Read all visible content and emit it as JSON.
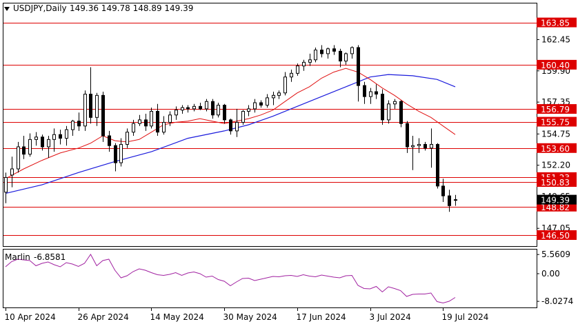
{
  "header": {
    "symbol": "USDJPY,Daily",
    "ohlc": "149.36 149.78 148.89 149.39"
  },
  "chart_data": [
    {
      "type": "candlestick",
      "y_ticks": [
        "162.45",
        "159.90",
        "157.35",
        "154.75",
        "152.20",
        "149.65",
        "147.05"
      ],
      "x_ticks": [
        "10 Apr 2024",
        "26 Apr 2024",
        "14 May 2024",
        "30 May 2024",
        "17 Jun 2024",
        "3 Jul 2024",
        "19 Jul 2024"
      ],
      "ylim": [
        145.6,
        165.4
      ],
      "levels": [
        "163.85",
        "160.40",
        "156.79",
        "155.75",
        "153.60",
        "151.23",
        "150.83",
        "148.82",
        "146.50"
      ],
      "current_price": "149.39",
      "colors": {
        "level_line": "#dd0000",
        "level_label_bg": "#dd0000",
        "current_price_bg": "#000000",
        "ma_fast": "#e01010",
        "ma_slow": "#1a1adc",
        "bull_body": "#ffffff",
        "bear_body": "#000000"
      },
      "candles": [
        [
          150.0,
          151.6,
          149.1,
          151.2
        ],
        [
          151.4,
          152.9,
          150.4,
          151.9
        ],
        [
          151.9,
          154.1,
          151.6,
          153.7
        ],
        [
          153.7,
          154.6,
          152.7,
          153.1
        ],
        [
          153.1,
          154.8,
          152.9,
          154.3
        ],
        [
          154.3,
          154.9,
          153.8,
          154.5
        ],
        [
          154.5,
          154.7,
          153.4,
          153.7
        ],
        [
          153.7,
          154.6,
          152.8,
          154.3
        ],
        [
          154.3,
          155.2,
          153.3,
          154.7
        ],
        [
          154.7,
          155.1,
          153.9,
          154.4
        ],
        [
          154.4,
          155.4,
          153.8,
          155.1
        ],
        [
          155.1,
          155.9,
          154.6,
          155.8
        ],
        [
          155.8,
          156.5,
          155.0,
          155.4
        ],
        [
          155.4,
          158.3,
          155.0,
          158.0
        ],
        [
          158.0,
          160.2,
          155.6,
          156.1
        ],
        [
          156.1,
          158.1,
          155.4,
          157.9
        ],
        [
          157.9,
          158.2,
          154.1,
          154.6
        ],
        [
          154.6,
          155.0,
          153.3,
          153.8
        ],
        [
          153.8,
          154.0,
          151.7,
          152.4
        ],
        [
          152.4,
          154.4,
          152.1,
          153.9
        ],
        [
          153.9,
          155.2,
          153.6,
          154.9
        ],
        [
          154.9,
          155.9,
          154.6,
          155.6
        ],
        [
          155.6,
          156.3,
          155.4,
          155.9
        ],
        [
          155.9,
          156.4,
          155.0,
          155.4
        ],
        [
          155.4,
          156.9,
          155.2,
          156.6
        ],
        [
          156.6,
          157.2,
          154.6,
          154.9
        ],
        [
          154.9,
          156.2,
          154.7,
          155.7
        ],
        [
          155.7,
          156.6,
          155.4,
          156.3
        ],
        [
          156.3,
          157.0,
          155.9,
          156.7
        ],
        [
          156.7,
          157.1,
          156.4,
          156.9
        ],
        [
          156.9,
          157.1,
          156.5,
          156.8
        ],
        [
          156.8,
          157.2,
          156.6,
          157.0
        ],
        [
          157.0,
          157.3,
          156.7,
          156.8
        ],
        [
          156.8,
          157.6,
          156.6,
          157.4
        ],
        [
          157.4,
          157.6,
          156.0,
          156.3
        ],
        [
          156.3,
          157.3,
          156.1,
          157.1
        ],
        [
          157.1,
          157.2,
          155.6,
          155.9
        ],
        [
          155.9,
          156.0,
          154.7,
          155.0
        ],
        [
          155.0,
          156.8,
          154.5,
          155.7
        ],
        [
          155.7,
          156.7,
          155.5,
          156.6
        ],
        [
          156.6,
          157.1,
          156.2,
          156.8
        ],
        [
          156.8,
          157.6,
          156.5,
          157.3
        ],
        [
          157.3,
          157.5,
          156.9,
          157.1
        ],
        [
          157.1,
          158.0,
          156.9,
          157.7
        ],
        [
          157.7,
          158.2,
          157.1,
          157.9
        ],
        [
          157.9,
          158.3,
          157.6,
          158.1
        ],
        [
          158.1,
          159.8,
          157.9,
          159.4
        ],
        [
          159.4,
          160.0,
          159.0,
          159.7
        ],
        [
          159.7,
          160.5,
          159.5,
          160.3
        ],
        [
          160.3,
          160.8,
          159.9,
          160.6
        ],
        [
          160.6,
          161.3,
          160.3,
          160.8
        ],
        [
          160.8,
          161.8,
          160.6,
          161.6
        ],
        [
          161.6,
          162.0,
          161.0,
          161.3
        ],
        [
          161.3,
          161.8,
          160.9,
          161.7
        ],
        [
          161.7,
          162.0,
          161.2,
          161.5
        ],
        [
          161.5,
          161.7,
          160.2,
          160.7
        ],
        [
          160.7,
          161.4,
          160.4,
          161.3
        ],
        [
          161.3,
          161.9,
          160.9,
          161.8
        ],
        [
          161.8,
          162.0,
          157.4,
          158.7
        ],
        [
          158.7,
          159.0,
          157.2,
          157.8
        ],
        [
          157.8,
          158.5,
          157.2,
          158.2
        ],
        [
          158.2,
          158.8,
          157.6,
          158.0
        ],
        [
          158.0,
          158.4,
          155.5,
          155.9
        ],
        [
          155.9,
          157.5,
          155.6,
          157.2
        ],
        [
          157.2,
          157.6,
          156.8,
          157.4
        ],
        [
          157.4,
          157.5,
          155.3,
          155.6
        ],
        [
          155.6,
          155.8,
          153.2,
          153.7
        ],
        [
          153.7,
          154.6,
          151.8,
          153.8
        ],
        [
          153.8,
          154.4,
          153.2,
          153.9
        ],
        [
          153.9,
          154.1,
          153.4,
          153.6
        ],
        [
          153.6,
          155.2,
          152.0,
          153.9
        ],
        [
          153.9,
          154.0,
          150.3,
          150.5
        ],
        [
          150.5,
          151.1,
          149.2,
          149.7
        ],
        [
          149.7,
          150.2,
          148.4,
          148.9
        ],
        [
          149.36,
          149.78,
          148.89,
          149.39
        ]
      ],
      "ma_fast": [
        [
          0,
          151.1
        ],
        [
          3,
          151.9
        ],
        [
          6,
          152.6
        ],
        [
          9,
          153.2
        ],
        [
          12,
          153.6
        ],
        [
          14,
          154.0
        ],
        [
          16,
          154.6
        ],
        [
          18,
          154.2
        ],
        [
          20,
          154.1
        ],
        [
          22,
          154.3
        ],
        [
          24,
          154.9
        ],
        [
          26,
          155.5
        ],
        [
          28,
          155.7
        ],
        [
          30,
          155.8
        ],
        [
          32,
          156.0
        ],
        [
          34,
          155.8
        ],
        [
          36,
          155.6
        ],
        [
          38,
          155.8
        ],
        [
          40,
          156.0
        ],
        [
          42,
          156.3
        ],
        [
          44,
          156.7
        ],
        [
          46,
          157.4
        ],
        [
          48,
          158.1
        ],
        [
          50,
          158.6
        ],
        [
          52,
          159.3
        ],
        [
          54,
          159.8
        ],
        [
          56,
          160.1
        ],
        [
          58,
          159.8
        ],
        [
          60,
          159.2
        ],
        [
          62,
          158.5
        ],
        [
          64,
          157.9
        ],
        [
          66,
          157.2
        ],
        [
          68,
          156.6
        ],
        [
          70,
          156.1
        ],
        [
          72,
          155.4
        ],
        [
          74,
          154.7
        ]
      ],
      "ma_slow": [
        [
          0,
          149.9
        ],
        [
          6,
          150.6
        ],
        [
          12,
          151.6
        ],
        [
          18,
          152.5
        ],
        [
          24,
          153.3
        ],
        [
          30,
          154.4
        ],
        [
          36,
          155.0
        ],
        [
          40,
          155.5
        ],
        [
          44,
          156.2
        ],
        [
          48,
          157.0
        ],
        [
          52,
          157.8
        ],
        [
          56,
          158.6
        ],
        [
          60,
          159.4
        ],
        [
          63,
          159.6
        ],
        [
          67,
          159.5
        ],
        [
          71,
          159.2
        ],
        [
          74,
          158.6
        ]
      ]
    },
    {
      "type": "line",
      "indicator": "Marlin",
      "value_label": "-6.8581",
      "y_ticks": [
        "5.5609",
        "0.00",
        "-8.0274"
      ],
      "ylim": [
        -9.8,
        7.0
      ],
      "color": "#a020a0",
      "values": [
        2.0,
        3.5,
        4.2,
        4.0,
        3.8,
        2.3,
        3.0,
        3.4,
        2.6,
        2.0,
        3.2,
        2.8,
        2.1,
        3.0,
        5.6,
        2.3,
        3.8,
        4.2,
        1.0,
        -1.2,
        -0.6,
        0.6,
        1.4,
        1.0,
        0.3,
        -0.3,
        -0.5,
        -0.2,
        0.3,
        -0.5,
        0.2,
        0.5,
        0.0,
        -1.0,
        -0.7,
        -1.7,
        -2.2,
        -3.5,
        -2.4,
        -1.4,
        -1.3,
        -2.0,
        -1.6,
        -1.2,
        -0.8,
        -0.9,
        -0.6,
        -0.5,
        -0.8,
        -0.3,
        -0.7,
        -0.9,
        -0.4,
        -0.7,
        -1.0,
        -1.2,
        -0.6,
        -0.5,
        -3.4,
        -4.3,
        -4.4,
        -3.7,
        -5.3,
        -3.8,
        -4.3,
        -4.9,
        -6.6,
        -6.0,
        -5.9,
        -5.9,
        -5.6,
        -8.1,
        -8.5,
        -8.0,
        -6.9
      ]
    }
  ]
}
